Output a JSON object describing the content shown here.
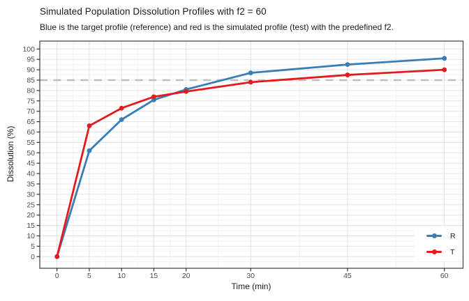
{
  "title": "Simulated Population Dissolution Profiles with f2 = 60",
  "subtitle": "Blue is the target profile (reference) and red is the simulated profile (test) with the predefined f2.",
  "chart_data": {
    "type": "line",
    "x": [
      0,
      5,
      10,
      15,
      20,
      30,
      45,
      60
    ],
    "series": [
      {
        "name": "R",
        "color": "#377EB8",
        "values": [
          0,
          51,
          66,
          75.5,
          80.5,
          88.5,
          92.5,
          95.5
        ]
      },
      {
        "name": "T",
        "color": "#E41A1C",
        "values": [
          0,
          63,
          71.5,
          77,
          79.5,
          84,
          87.5,
          90
        ]
      }
    ],
    "xlabel": "Time (min)",
    "ylabel": "Dissolution (%)",
    "x_ticks": [
      0,
      5,
      10,
      15,
      20,
      30,
      45,
      60
    ],
    "y_ticks": [
      0,
      5,
      10,
      15,
      20,
      25,
      30,
      35,
      40,
      45,
      50,
      55,
      60,
      65,
      70,
      75,
      80,
      85,
      90,
      95,
      100
    ],
    "xlim": [
      0,
      60
    ],
    "ylim": [
      0,
      100
    ],
    "grid": "on",
    "reference_line": {
      "y": 85,
      "style": "dashed",
      "color": "#BEBEBE"
    },
    "legend": {
      "position": "bottom-right-inset",
      "entries": [
        {
          "label": "R",
          "color": "#377EB8"
        },
        {
          "label": "T",
          "color": "#E41A1C"
        }
      ]
    },
    "colors": {
      "panel_background": "#FFFFFF",
      "panel_border": "#3C3C3C",
      "grid_major": "#E3E3E3",
      "grid_minor": "#F1F1F1",
      "tick_mark": "#333333",
      "tick_label": "#4D4D4D",
      "text": "#1A1A1A"
    }
  }
}
